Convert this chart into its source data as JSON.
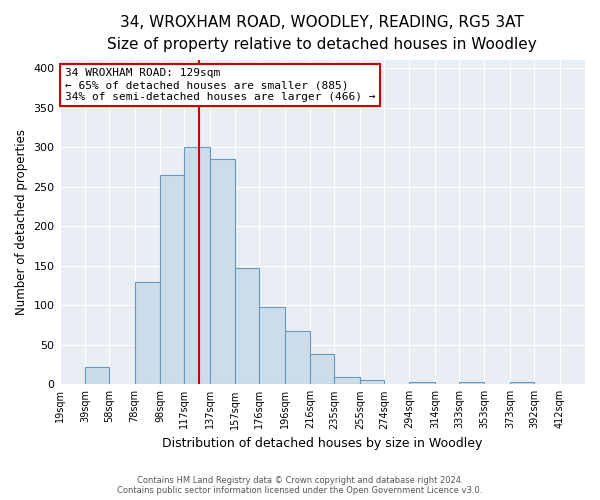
{
  "title": "34, WROXHAM ROAD, WOODLEY, READING, RG5 3AT",
  "subtitle": "Size of property relative to detached houses in Woodley",
  "xlabel": "Distribution of detached houses by size in Woodley",
  "ylabel": "Number of detached properties",
  "bin_labels": [
    "19sqm",
    "39sqm",
    "58sqm",
    "78sqm",
    "98sqm",
    "117sqm",
    "137sqm",
    "157sqm",
    "176sqm",
    "196sqm",
    "216sqm",
    "235sqm",
    "255sqm",
    "274sqm",
    "294sqm",
    "314sqm",
    "333sqm",
    "353sqm",
    "373sqm",
    "392sqm",
    "412sqm"
  ],
  "bin_edges": [
    19,
    39,
    58,
    78,
    98,
    117,
    137,
    157,
    176,
    196,
    216,
    235,
    255,
    274,
    294,
    314,
    333,
    353,
    373,
    392,
    412
  ],
  "bar_heights": [
    0,
    22,
    0,
    130,
    265,
    300,
    285,
    147,
    98,
    68,
    38,
    9,
    5,
    0,
    3,
    0,
    3,
    0,
    3,
    0,
    0
  ],
  "bar_color": "#ccdce8",
  "bar_edge_color": "#6699bb",
  "property_line_x": 129,
  "property_line_color": "#cc0000",
  "annotation_title": "34 WROXHAM ROAD: 129sqm",
  "annotation_line1": "← 65% of detached houses are smaller (885)",
  "annotation_line2": "34% of semi-detached houses are larger (466) →",
  "annotation_box_edgecolor": "#cc0000",
  "ylim": [
    0,
    410
  ],
  "yticks": [
    0,
    50,
    100,
    150,
    200,
    250,
    300,
    350,
    400
  ],
  "footer1": "Contains HM Land Registry data © Crown copyright and database right 2024.",
  "footer2": "Contains public sector information licensed under the Open Government Licence v3.0.",
  "bg_color": "#ffffff",
  "plot_bg_color": "#e8eef4",
  "grid_color": "#ffffff",
  "title_fontsize": 11,
  "subtitle_fontsize": 9.5
}
